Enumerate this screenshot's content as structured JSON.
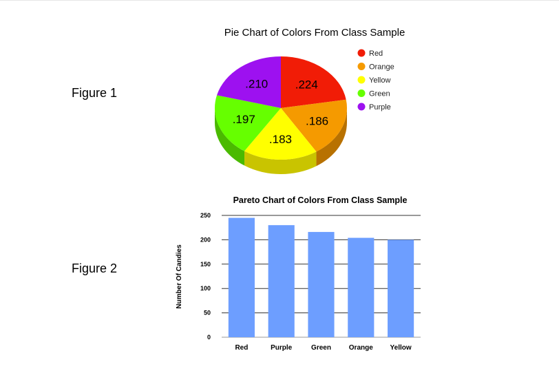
{
  "figures": {
    "figure1_label": "Figure 1",
    "figure2_label": "Figure 2"
  },
  "chart_data": [
    {
      "type": "pie",
      "title": "Pie Chart of Colors From Class Sample",
      "categories": [
        "Red",
        "Orange",
        "Yellow",
        "Green",
        "Purple"
      ],
      "values": [
        0.224,
        0.186,
        0.183,
        0.197,
        0.21
      ],
      "data_labels": [
        ".224",
        ".186",
        ".183",
        ".197",
        ".210"
      ],
      "colors": [
        "#f11c06",
        "#f59a00",
        "#ffff00",
        "#66ff00",
        "#9d11f0"
      ],
      "side_colors": [
        "#b51300",
        "#b87100",
        "#c9c400",
        "#4aba00",
        "#7410b3"
      ],
      "legend": {
        "position": "right",
        "entries": [
          "Red",
          "Orange",
          "Yellow",
          "Green",
          "Purple"
        ]
      },
      "style": "3d"
    },
    {
      "type": "bar",
      "title": "Pareto Chart of Colors From Class Sample",
      "categories": [
        "Red",
        "Purple",
        "Green",
        "Orange",
        "Yellow"
      ],
      "values": [
        245,
        230,
        216,
        204,
        200
      ],
      "xlabel": "",
      "ylabel": "Number Of Candies",
      "ylim": [
        0,
        250
      ],
      "yticks": [
        0,
        50,
        100,
        150,
        200,
        250
      ],
      "grid": true,
      "bar_color": "#6d9eff"
    }
  ]
}
